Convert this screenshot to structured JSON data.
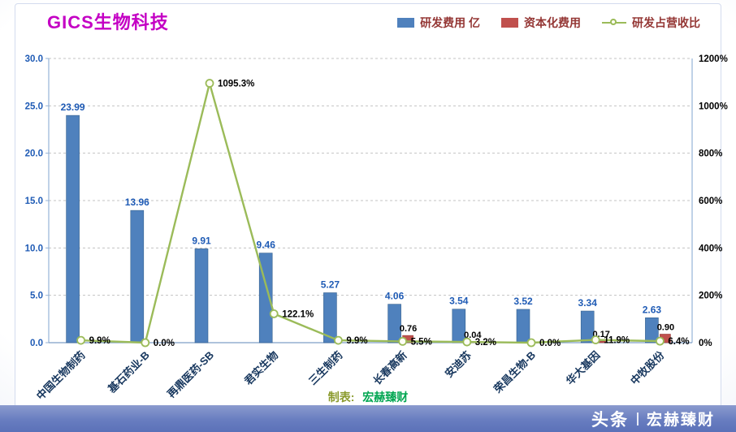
{
  "page": {
    "title": "GICS生物科技"
  },
  "legend": {
    "items": [
      {
        "label": "研发费用 亿",
        "marker": "bar",
        "color": "#4f81bd"
      },
      {
        "label": "资本化费用",
        "marker": "bar",
        "color": "#c0504d"
      },
      {
        "label": "研发占营收比",
        "marker": "line",
        "color": "#9bbb59"
      }
    ]
  },
  "footer": {
    "label": "制表:",
    "brand": "宏赫臻财"
  },
  "watermark": {
    "platform": "头条",
    "brand": "宏赫臻财"
  },
  "chart_data": {
    "type": "bar+line",
    "title": "GICS生物科技",
    "categories": [
      "中国生物制药",
      "基石药业-B",
      "再鼎医药-SB",
      "君实生物",
      "三生制药",
      "长春高新",
      "安迪苏",
      "荣昌生物-B",
      "华大基因",
      "中牧股份"
    ],
    "series": [
      {
        "name": "研发费用 亿",
        "type": "bar",
        "axis": "left",
        "color": "#4f81bd",
        "values": [
          23.99,
          13.96,
          9.91,
          9.46,
          5.27,
          4.06,
          3.54,
          3.52,
          3.34,
          2.63
        ],
        "labels": [
          "23.99",
          "13.96",
          "9.91",
          "9.46",
          "5.27",
          "4.06",
          "3.54",
          "3.52",
          "3.34",
          "2.63"
        ]
      },
      {
        "name": "资本化费用",
        "type": "bar",
        "axis": "left",
        "color": "#c0504d",
        "values": [
          null,
          null,
          null,
          null,
          null,
          0.76,
          0.04,
          null,
          0.17,
          0.9
        ],
        "labels": [
          null,
          null,
          null,
          null,
          null,
          "0.76",
          "0.04",
          null,
          "0.17",
          "0.90"
        ]
      },
      {
        "name": "研发占营收比",
        "type": "line",
        "axis": "right",
        "color": "#9bbb59",
        "values": [
          9.9,
          0.0,
          1095.3,
          122.1,
          9.9,
          5.5,
          3.2,
          0.0,
          11.9,
          6.4
        ],
        "labels": [
          "9.9%",
          "0.0%",
          "1095.3%",
          "122.1%",
          "9.9%",
          "5.5%",
          "3.2%",
          "0.0%",
          "11.9%",
          "6.4%"
        ]
      }
    ],
    "left_axis": {
      "min": 0,
      "max": 30,
      "step": 5,
      "ticks": [
        "0.0",
        "5.0",
        "10.0",
        "15.0",
        "20.0",
        "25.0",
        "30.0"
      ]
    },
    "right_axis": {
      "min": 0,
      "max": 1200,
      "step": 200,
      "ticks": [
        "0%",
        "200%",
        "400%",
        "600%",
        "800%",
        "1000%",
        "1200%"
      ]
    },
    "grid": true,
    "legend_position": "top"
  }
}
